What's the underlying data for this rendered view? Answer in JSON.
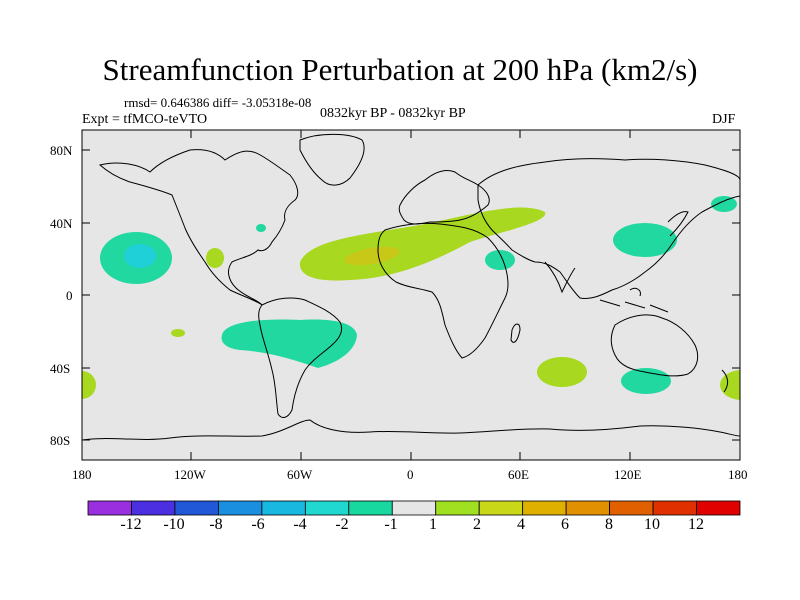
{
  "title": "Streamfunction Perturbation at 200 hPa (km2/s)",
  "stats": "rmsd= 0.646386 diff= -3.05318e-08",
  "experiment": "Expt = tfMCO-teVTO",
  "period": "0832kyr BP - 0832kyr BP",
  "season": "DJF",
  "map": {
    "background_color": "#e6e6e6",
    "coastline_color": "#000000",
    "lat_ticks": [
      "80N",
      "40N",
      "0",
      "40S",
      "80S"
    ],
    "lon_ticks": [
      "180",
      "120W",
      "60W",
      "0",
      "60E",
      "120E",
      "180"
    ]
  },
  "colorbar": {
    "colors": [
      "#9a2fe0",
      "#4c2fe0",
      "#2058d8",
      "#1a8fe0",
      "#18b8e0",
      "#20d8d0",
      "#18d8a0",
      "#e6e6e6",
      "#a0e020",
      "#c8d818",
      "#e0b000",
      "#e09000",
      "#e06000",
      "#e03000",
      "#e00000"
    ],
    "labels": [
      "-12",
      "-10",
      "-8",
      "-6",
      "-4",
      "-2",
      "-1",
      "1",
      "2",
      "4",
      "6",
      "8",
      "10",
      "12"
    ]
  },
  "anomalies": [
    {
      "region": "north-pacific-subtropics",
      "level": "-2",
      "color": "#20d8a0"
    },
    {
      "region": "north-pacific-core",
      "level": "-4",
      "color": "#20d0d8"
    },
    {
      "region": "north-atlantic-africa-band",
      "level": "2",
      "color": "#a8d820"
    },
    {
      "region": "north-africa-core",
      "level": "4",
      "color": "#c8c818"
    },
    {
      "region": "south-atlantic",
      "level": "-2",
      "color": "#20d8a0"
    },
    {
      "region": "east-asia",
      "level": "-2",
      "color": "#20d8a0"
    },
    {
      "region": "south-indian-ocean",
      "level": "2",
      "color": "#a8d820"
    },
    {
      "region": "south-of-australia",
      "level": "-2",
      "color": "#20d8a0"
    }
  ]
}
